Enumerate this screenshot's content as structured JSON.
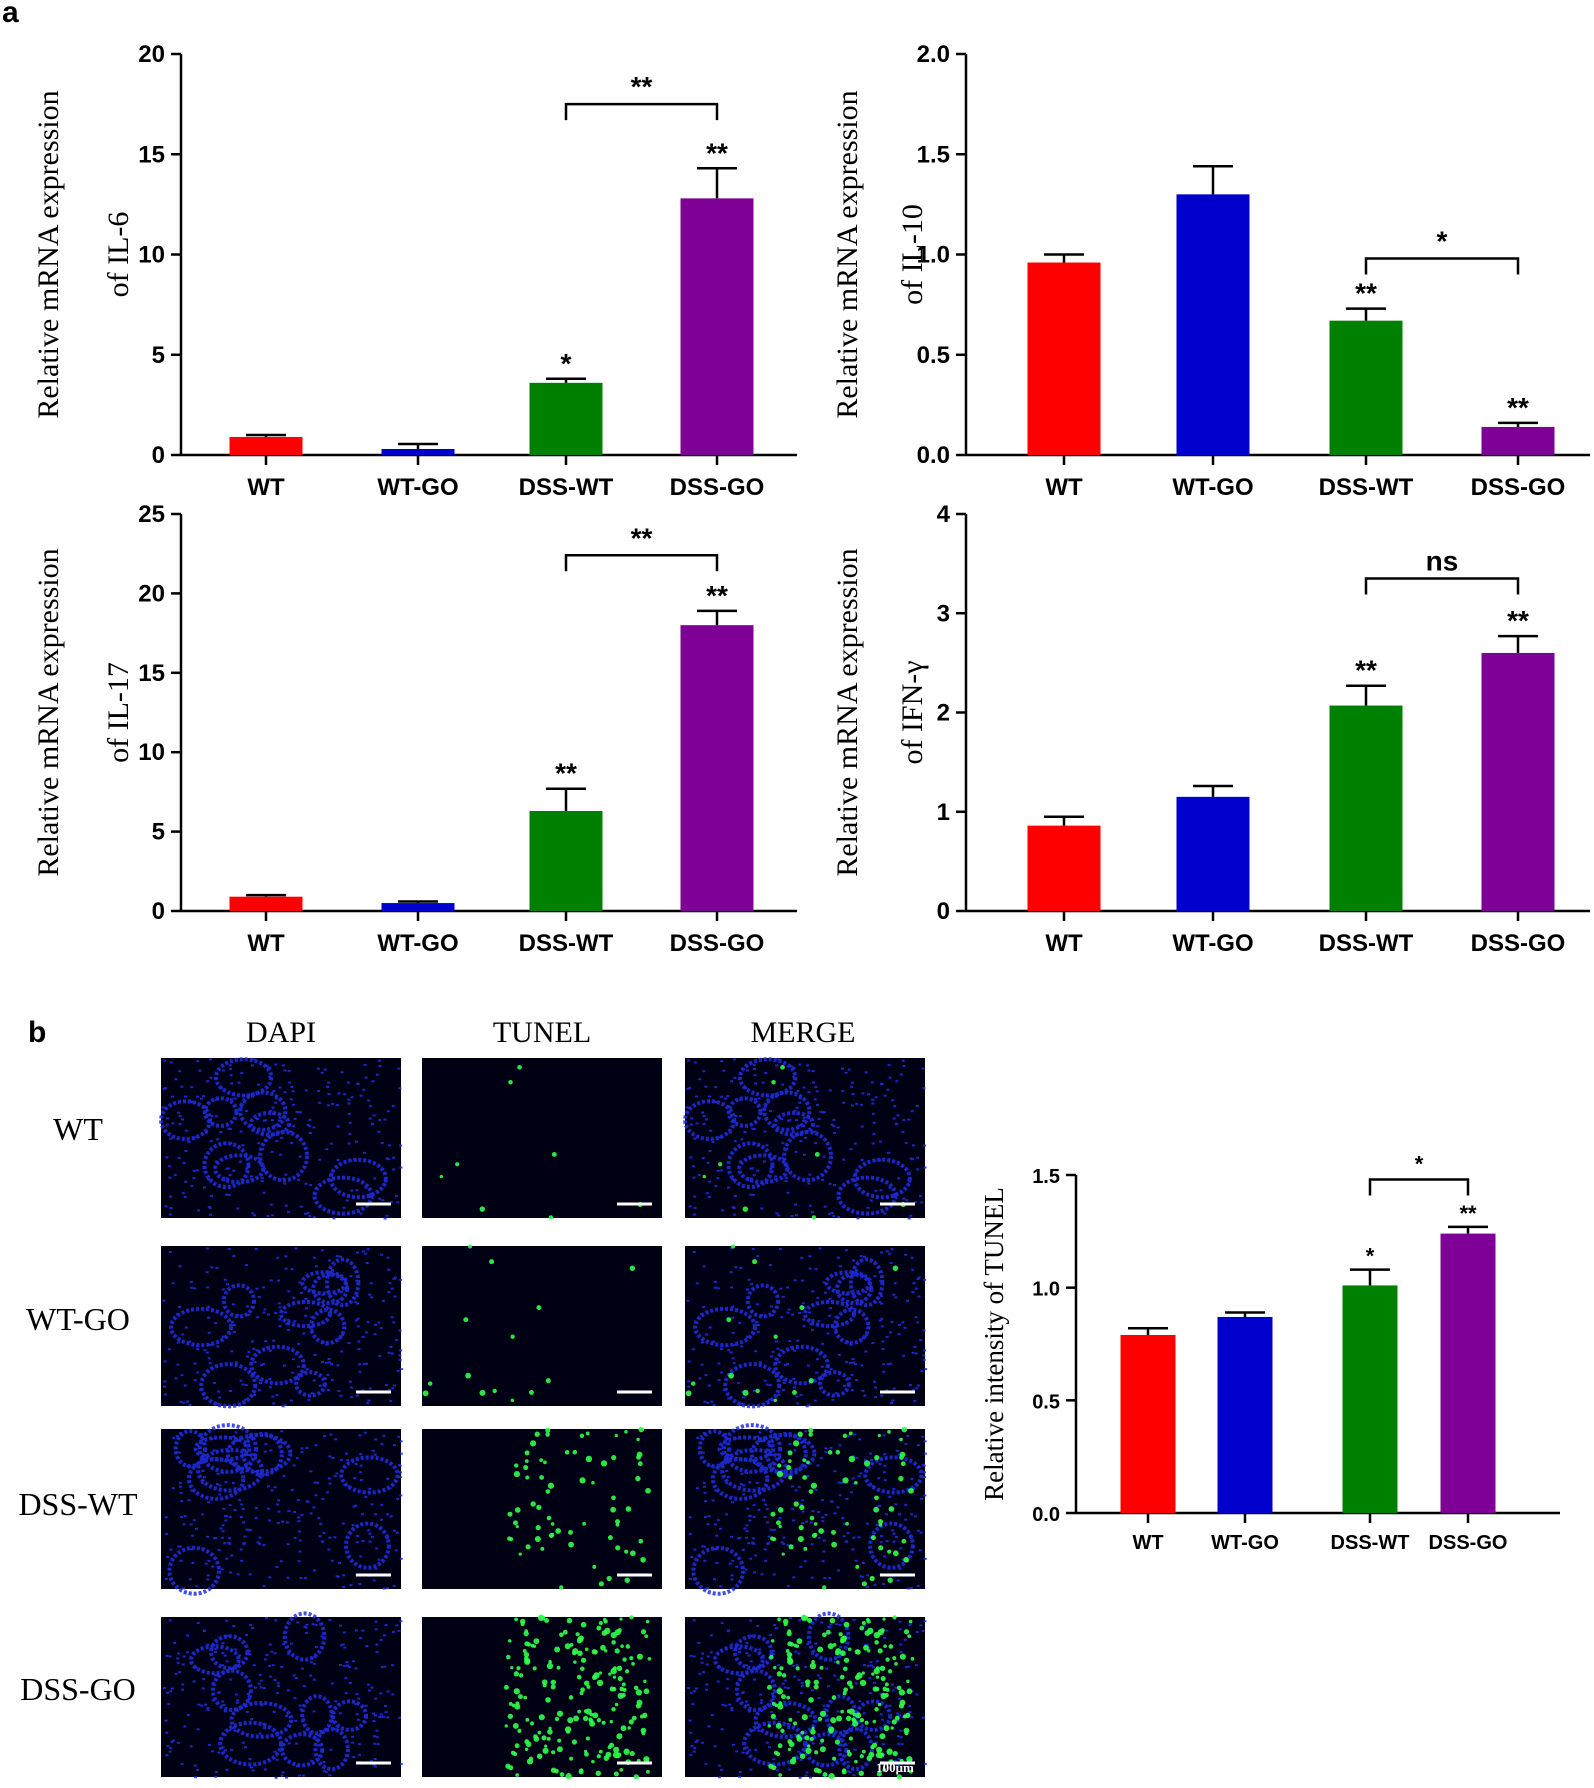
{
  "panel_a_label": "a",
  "panel_b_label": "b",
  "colors": {
    "WT": "#ff0000",
    "WT-GO": "#0000cc",
    "DSS-WT": "#008000",
    "DSS-GO": "#7f0096",
    "dapi_bg": "#000014",
    "dapi_fg": "#1f2fe8",
    "tunel_fg": "#2dff4a"
  },
  "micrographs": {
    "columns": [
      "DAPI",
      "TUNEL",
      "MERGE"
    ],
    "rows": [
      "WT",
      "WT-GO",
      "DSS-WT",
      "DSS-GO"
    ],
    "scale_bar_label": "100μm"
  },
  "chart_data": [
    {
      "id": "il6",
      "type": "bar",
      "categories": [
        "WT",
        "WT-GO",
        "DSS-WT",
        "DSS-GO"
      ],
      "values": [
        0.9,
        0.3,
        3.6,
        12.8
      ],
      "errors": [
        0.1,
        0.25,
        0.2,
        1.5
      ],
      "ylabel_lines": [
        "Relative mRNA expression",
        "of IL-6"
      ],
      "ylim": [
        0,
        20
      ],
      "yticks": [
        "0",
        "5",
        "10",
        "15",
        "20"
      ],
      "bar_marks": [
        "",
        "",
        "*",
        "**"
      ],
      "bracket": {
        "from": 2,
        "to": 3,
        "label": "**",
        "y": 17.5
      }
    },
    {
      "id": "il10",
      "type": "bar",
      "categories": [
        "WT",
        "WT-GO",
        "DSS-WT",
        "DSS-GO"
      ],
      "values": [
        0.96,
        1.3,
        0.67,
        0.14
      ],
      "errors": [
        0.04,
        0.14,
        0.06,
        0.02
      ],
      "ylabel_lines": [
        "Relative mRNA expression",
        "of IL-10"
      ],
      "ylim": [
        0,
        2.0
      ],
      "yticks": [
        "0.0",
        "0.5",
        "1.0",
        "1.5",
        "2.0"
      ],
      "bar_marks": [
        "",
        "",
        "**",
        "**"
      ],
      "bracket": {
        "from": 2,
        "to": 3,
        "label": "*",
        "y": 0.98
      }
    },
    {
      "id": "il17",
      "type": "bar",
      "categories": [
        "WT",
        "WT-GO",
        "DSS-WT",
        "DSS-GO"
      ],
      "values": [
        0.9,
        0.5,
        6.3,
        18.0
      ],
      "errors": [
        0.1,
        0.1,
        1.4,
        0.9
      ],
      "ylabel_lines": [
        "Relative mRNA expression",
        "of IL-17"
      ],
      "ylim": [
        0,
        25
      ],
      "yticks": [
        "0",
        "5",
        "10",
        "15",
        "20",
        "25"
      ],
      "bar_marks": [
        "",
        "",
        "**",
        "**"
      ],
      "bracket": {
        "from": 2,
        "to": 3,
        "label": "**",
        "y": 22.4
      }
    },
    {
      "id": "ifng",
      "type": "bar",
      "categories": [
        "WT",
        "WT-GO",
        "DSS-WT",
        "DSS-GO"
      ],
      "values": [
        0.86,
        1.15,
        2.07,
        2.6
      ],
      "errors": [
        0.09,
        0.11,
        0.2,
        0.17
      ],
      "ylabel_lines": [
        "Relative mRNA expression",
        "of IFN-γ"
      ],
      "ylim": [
        0,
        4
      ],
      "yticks": [
        "0",
        "1",
        "2",
        "3",
        "4"
      ],
      "bar_marks": [
        "",
        "",
        "**",
        "**"
      ],
      "bracket": {
        "from": 2,
        "to": 3,
        "label": "ns",
        "y": 3.35
      }
    },
    {
      "id": "tunel",
      "type": "bar",
      "categories": [
        "WT",
        "WT-GO",
        "DSS-WT",
        "DSS-GO"
      ],
      "values": [
        0.79,
        0.87,
        1.01,
        1.24
      ],
      "errors": [
        0.03,
        0.02,
        0.07,
        0.03
      ],
      "ylabel_lines": [
        "Relative intensity of TUNEL"
      ],
      "ylim": [
        0,
        1.5
      ],
      "yticks": [
        "0.0",
        "0.5",
        "1.0",
        "1.5"
      ],
      "bar_marks": [
        "",
        "",
        "*",
        "**"
      ],
      "bracket": {
        "from": 2,
        "to": 3,
        "label": "*",
        "y": 1.48
      }
    }
  ]
}
